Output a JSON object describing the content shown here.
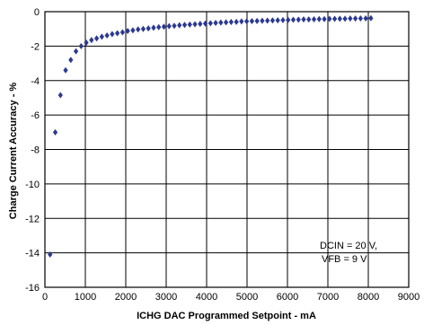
{
  "chart_data": {
    "type": "scatter",
    "xlabel": "ICHG DAC Programmed Setpoint - mA",
    "ylabel": "Charge Current Accuracy - %",
    "xlim": [
      0,
      9000
    ],
    "ylim": [
      -16,
      0
    ],
    "xticks": [
      "0",
      "1000",
      "2000",
      "3000",
      "4000",
      "5000",
      "6000",
      "7000",
      "8000",
      "9000"
    ],
    "yticks": [
      "0",
      "-2",
      "-4",
      "-6",
      "-8",
      "-10",
      "-12",
      "-14",
      "-16"
    ],
    "grid": true,
    "marker": "diamond",
    "color": "#2b3990",
    "annotation": [
      "DCIN = 20 V,",
      "VFB = 9 V"
    ],
    "series": [
      {
        "x": [
          128,
          256,
          384,
          512,
          640,
          768,
          896,
          1024,
          1152,
          1280,
          1408,
          1536,
          1664,
          1792,
          1920,
          2048,
          2176,
          2304,
          2432,
          2560,
          2688,
          2816,
          2944,
          3072,
          3200,
          3328,
          3456,
          3584,
          3712,
          3840,
          3968,
          4096,
          4224,
          4352,
          4480,
          4608,
          4736,
          4864,
          4992,
          5120,
          5248,
          5376,
          5504,
          5632,
          5760,
          5888,
          6016,
          6144,
          6272,
          6400,
          6528,
          6656,
          6784,
          6912,
          7040,
          7168,
          7296,
          7424,
          7552,
          7680,
          7808,
          7936,
          8064
        ],
        "y": [
          -14.1,
          -7.0,
          -4.85,
          -3.4,
          -2.8,
          -2.3,
          -2.0,
          -1.8,
          -1.65,
          -1.55,
          -1.45,
          -1.38,
          -1.3,
          -1.25,
          -1.2,
          -1.12,
          -1.08,
          -1.03,
          -1.0,
          -0.97,
          -0.93,
          -0.9,
          -0.87,
          -0.84,
          -0.82,
          -0.79,
          -0.77,
          -0.75,
          -0.73,
          -0.71,
          -0.69,
          -0.67,
          -0.65,
          -0.63,
          -0.62,
          -0.6,
          -0.59,
          -0.57,
          -0.56,
          -0.55,
          -0.54,
          -0.53,
          -0.52,
          -0.51,
          -0.5,
          -0.49,
          -0.48,
          -0.47,
          -0.46,
          -0.45,
          -0.45,
          -0.44,
          -0.43,
          -0.43,
          -0.42,
          -0.42,
          -0.41,
          -0.41,
          -0.4,
          -0.4,
          -0.39,
          -0.39,
          -0.38
        ]
      }
    ]
  }
}
